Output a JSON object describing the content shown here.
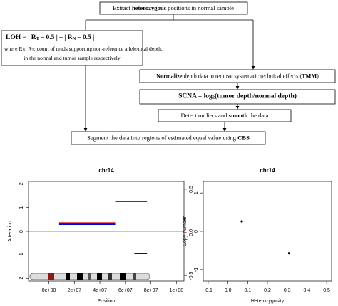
{
  "flowchart": {
    "nodes": [
      {
        "parts": [
          "Extract ",
          "heterozygous",
          " positions in normal sample"
        ]
      },
      {
        "parts": [
          "LOH = | R",
          "T",
          " – 0.5 | – | R",
          "N",
          " – 0.5 |",
          "where R",
          "N",
          ", R",
          "T",
          ": count of reads supporting non-reference allele/total depth,",
          "in the normal and tumor sample respectively"
        ]
      },
      {
        "parts": [
          "Normalize",
          " depth data to remove systematic technical effects (",
          "TMM",
          ")"
        ]
      },
      {
        "parts": [
          "SCNA = log",
          "2",
          "(tumor depth/normal depth)"
        ]
      },
      {
        "parts": [
          "Detect outliers and ",
          "smooth",
          " the data"
        ]
      },
      {
        "parts": [
          "Segment the data into regions of estimated equal value using ",
          "CBS"
        ]
      }
    ]
  },
  "chart_data": [
    {
      "type": "segments",
      "title": "chr14",
      "xlabel": "Position",
      "ylabel": "Alteration",
      "xlim": [
        -16000000,
        106000000
      ],
      "xticks": [
        {
          "value": 0,
          "label": "0e+00"
        },
        {
          "value": 20000000,
          "label": "2e+07"
        },
        {
          "value": 40000000,
          "label": "4e+07"
        },
        {
          "value": 60000000,
          "label": "6e+07"
        },
        {
          "value": 80000000,
          "label": "8e+07"
        },
        {
          "value": 100000000,
          "label": "1e+08"
        }
      ],
      "ylim": [
        -2.1,
        2.1
      ],
      "yticks": [
        -2,
        -1,
        0,
        1,
        2
      ],
      "y2lim": [
        -0.56,
        0.59
      ],
      "y2ticks": [
        -0.5,
        {
          "value": 0,
          "label": "0.0"
        },
        0.5
      ],
      "y2color": "#e00000",
      "hline": 0,
      "series": [
        {
          "color": "#0000dd",
          "segments": [
            {
              "start": 8000000,
              "end": 52000000,
              "value": 0.3
            },
            {
              "start": 67000000,
              "end": 77000000,
              "value": -0.93
            }
          ]
        },
        {
          "color": "#e00000",
          "axis": "y2",
          "segments": [
            {
              "start": 8000000,
              "end": 52000000,
              "value": 0.11
            },
            {
              "start": 52000000,
              "end": 77000000,
              "value": 0.36
            }
          ]
        }
      ]
    },
    {
      "type": "scatter",
      "title": "chr14",
      "xlabel": "Heterozygosity",
      "ylabel": "Copy number",
      "xlim": [
        -0.125,
        0.525
      ],
      "xticks": [
        -0.1,
        {
          "value": 0,
          "label": "0.0"
        },
        0.1,
        0.2,
        0.3,
        0.4,
        0.5
      ],
      "ylim": [
        -1.3,
        1.3
      ],
      "yticks": [
        -1,
        0,
        1
      ],
      "color": "#000000",
      "x": [
        0.07,
        0.31
      ],
      "values": [
        0.26,
        -0.57
      ]
    }
  ]
}
